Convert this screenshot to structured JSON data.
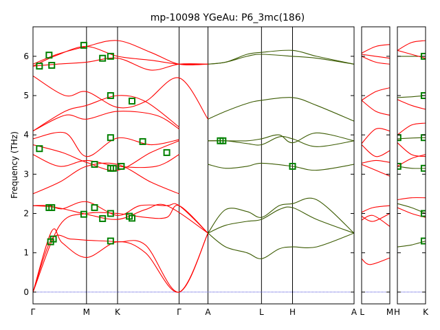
{
  "chart_data": {
    "type": "line",
    "title": "mp-10098   YGeAu: P6_3mc(186)",
    "ylabel": "Frequency (THz)",
    "ylim": [
      -0.3,
      6.75
    ],
    "yticks": [
      0,
      1,
      2,
      3,
      4,
      5,
      6
    ],
    "grid": false,
    "colors": {
      "band": "#ff0000",
      "highlight_band": "#3a5a00",
      "marker": "#008000",
      "zero_line": "#0000cc"
    },
    "panels": [
      {
        "xlabels": [
          "Γ",
          "M",
          "K",
          "Γ",
          "A",
          "L",
          "H",
          "A"
        ],
        "xticks": [
          0,
          1,
          1.58,
          2.73,
          3.27,
          4.27,
          4.85,
          6.0
        ],
        "xlim": [
          0,
          6.0
        ],
        "series": [
          {
            "kind": "red",
            "x": [
              0,
              0.35,
              0.7,
              1.0,
              1.58,
              2.1,
              2.73,
              3.27
            ],
            "y": [
              0,
              1.35,
              1.35,
              1.32,
              1.28,
              1.2,
              0,
              1.5
            ]
          },
          {
            "kind": "red",
            "x": [
              0,
              0.35,
              0.55,
              1.0,
              1.58,
              2.1,
              2.73,
              3.27
            ],
            "y": [
              0,
              1.55,
              1.25,
              0.88,
              1.28,
              1.0,
              0,
              1.5
            ]
          },
          {
            "kind": "red",
            "x": [
              0,
              0.5,
              1.0,
              1.58,
              2.1,
              2.5,
              2.73,
              3.27
            ],
            "y": [
              0,
              1.7,
              2.0,
              2.0,
              1.9,
              1.9,
              2.2,
              1.5
            ]
          },
          {
            "kind": "red",
            "x": [
              0,
              0.45,
              1.0,
              1.58,
              2.1,
              2.5,
              3.27
            ],
            "y": [
              2.2,
              2.15,
              1.98,
              1.85,
              2.1,
              2.2,
              1.5
            ]
          },
          {
            "kind": "red",
            "x": [
              0,
              0.3,
              0.55,
              1.0,
              1.58,
              2.0,
              2.5,
              2.73,
              3.27
            ],
            "y": [
              2.2,
              2.2,
              2.12,
              2.3,
              1.95,
              2.2,
              2.2,
              2.2,
              1.5
            ]
          },
          {
            "kind": "red",
            "x": [
              0,
              0.5,
              1.0,
              1.58,
              2.2,
              2.73
            ],
            "y": [
              2.5,
              2.8,
              3.2,
              3.25,
              2.8,
              2.5
            ]
          },
          {
            "kind": "red",
            "x": [
              0,
              0.5,
              1.0,
              1.58,
              2.3,
              2.73
            ],
            "y": [
              3.5,
              3.2,
              3.35,
              3.2,
              3.2,
              3.5
            ]
          },
          {
            "kind": "red",
            "x": [
              0,
              0.55,
              1.0,
              1.58,
              2.2,
              2.73
            ],
            "y": [
              3.75,
              3.55,
              3.3,
              3.1,
              3.55,
              3.85
            ]
          },
          {
            "kind": "red",
            "x": [
              0,
              0.6,
              1.0,
              1.58,
              2.2,
              2.73
            ],
            "y": [
              3.9,
              4.05,
              3.45,
              3.92,
              3.75,
              3.88
            ]
          },
          {
            "kind": "red",
            "x": [
              0,
              0.6,
              1.0,
              1.58,
              2.3,
              2.73
            ],
            "y": [
              4.1,
              4.5,
              4.4,
              4.6,
              4.5,
              4.15
            ]
          },
          {
            "kind": "red",
            "x": [
              0,
              0.6,
              1.0,
              1.58,
              2.1,
              2.73
            ],
            "y": [
              4.1,
              4.6,
              4.75,
              5.0,
              4.85,
              4.2
            ]
          },
          {
            "kind": "red",
            "x": [
              0,
              0.6,
              1.0,
              1.58,
              2.1,
              2.73,
              3.27
            ],
            "y": [
              5.5,
              5.0,
              5.1,
              4.7,
              4.85,
              5.45,
              4.4
            ]
          },
          {
            "kind": "red",
            "x": [
              0,
              0.45,
              1.0,
              1.58,
              2.2,
              2.73,
              3.27
            ],
            "y": [
              5.75,
              5.8,
              5.85,
              5.95,
              5.65,
              5.8,
              5.8
            ]
          },
          {
            "kind": "red",
            "x": [
              0,
              0.45,
              1.0,
              1.58,
              2.2,
              2.73,
              3.27
            ],
            "y": [
              5.75,
              6.03,
              6.25,
              6.0,
              5.9,
              5.8,
              5.8
            ]
          },
          {
            "kind": "red",
            "x": [
              0,
              0.45,
              1.0,
              1.58,
              2.2,
              2.73,
              3.27
            ],
            "y": [
              5.8,
              6.05,
              6.25,
              6.4,
              6.1,
              5.8,
              5.8
            ]
          },
          {
            "kind": "green",
            "x": [
              3.27,
              3.6,
              4.0,
              4.27,
              4.6,
              4.85,
              5.3,
              6.0
            ],
            "y": [
              1.5,
              1.15,
              1.0,
              0.85,
              1.1,
              1.15,
              1.15,
              1.5
            ]
          },
          {
            "kind": "green",
            "x": [
              3.27,
              3.6,
              4.0,
              4.27,
              4.6,
              4.85,
              5.3,
              6.0
            ],
            "y": [
              1.5,
              1.7,
              1.8,
              1.85,
              2.1,
              2.15,
              1.85,
              1.5
            ]
          },
          {
            "kind": "green",
            "x": [
              3.27,
              3.6,
              4.0,
              4.27,
              4.6,
              4.85,
              5.3,
              6.0
            ],
            "y": [
              1.5,
              2.1,
              2.05,
              1.9,
              2.2,
              2.25,
              2.35,
              1.5
            ]
          },
          {
            "kind": "green",
            "x": [
              3.27,
              3.6,
              4.0,
              4.27,
              4.85,
              5.3,
              6.0
            ],
            "y": [
              3.25,
              3.15,
              3.2,
              3.28,
              3.2,
              3.1,
              3.25
            ]
          },
          {
            "kind": "green",
            "x": [
              3.27,
              3.6,
              4.0,
              4.27,
              4.6,
              4.85,
              5.3,
              6.0
            ],
            "y": [
              3.85,
              3.85,
              3.78,
              3.75,
              3.95,
              3.9,
              3.7,
              3.85
            ]
          },
          {
            "kind": "green",
            "x": [
              3.27,
              3.6,
              4.0,
              4.27,
              4.6,
              4.85,
              5.3,
              6.0
            ],
            "y": [
              3.85,
              3.85,
              3.85,
              3.9,
              4.0,
              3.8,
              4.05,
              3.85
            ]
          },
          {
            "kind": "green",
            "x": [
              3.27,
              3.6,
              4.0,
              4.27,
              4.85,
              5.3,
              6.0
            ],
            "y": [
              4.4,
              4.6,
              4.8,
              4.88,
              4.95,
              4.75,
              4.35
            ]
          },
          {
            "kind": "green",
            "x": [
              3.27,
              3.6,
              4.0,
              4.27,
              4.85,
              5.3,
              6.0
            ],
            "y": [
              5.8,
              5.85,
              6.0,
              6.05,
              6.0,
              5.95,
              5.8
            ]
          },
          {
            "kind": "green",
            "x": [
              3.27,
              3.6,
              4.0,
              4.27,
              4.85,
              5.3,
              6.0
            ],
            "y": [
              5.8,
              5.85,
              6.05,
              6.1,
              6.15,
              6.0,
              5.8
            ]
          }
        ],
        "markers": [
          {
            "x": 0.12,
            "y": 5.75
          },
          {
            "x": 0.3,
            "y": 6.03
          },
          {
            "x": 0.35,
            "y": 5.77
          },
          {
            "x": 0.12,
            "y": 3.65
          },
          {
            "x": 0.3,
            "y": 2.15
          },
          {
            "x": 0.35,
            "y": 2.15
          },
          {
            "x": 0.33,
            "y": 1.28
          },
          {
            "x": 0.38,
            "y": 1.35
          },
          {
            "x": 0.95,
            "y": 6.28
          },
          {
            "x": 0.95,
            "y": 1.98
          },
          {
            "x": 1.15,
            "y": 3.25
          },
          {
            "x": 1.15,
            "y": 2.15
          },
          {
            "x": 1.3,
            "y": 1.87
          },
          {
            "x": 1.3,
            "y": 5.95
          },
          {
            "x": 1.45,
            "y": 6.0
          },
          {
            "x": 1.45,
            "y": 5.0
          },
          {
            "x": 1.45,
            "y": 3.93
          },
          {
            "x": 1.45,
            "y": 3.15
          },
          {
            "x": 1.5,
            "y": 3.15
          },
          {
            "x": 1.45,
            "y": 2.0
          },
          {
            "x": 1.45,
            "y": 1.3
          },
          {
            "x": 1.65,
            "y": 3.2
          },
          {
            "x": 1.8,
            "y": 1.93
          },
          {
            "x": 1.85,
            "y": 1.88
          },
          {
            "x": 1.85,
            "y": 4.86
          },
          {
            "x": 2.05,
            "y": 3.83
          },
          {
            "x": 2.5,
            "y": 3.55
          },
          {
            "x": 3.5,
            "y": 3.85
          },
          {
            "x": 3.55,
            "y": 3.85
          },
          {
            "x": 4.85,
            "y": 3.2
          }
        ]
      },
      {
        "xlabels": [
          "L",
          "M"
        ],
        "xticks": [
          0,
          1
        ],
        "xlim": [
          0,
          1
        ],
        "series": [
          {
            "kind": "red",
            "x": [
              0,
              0.3,
              1
            ],
            "y": [
              0.85,
              0.7,
              0.87
            ]
          },
          {
            "kind": "red",
            "x": [
              0,
              0.4,
              1
            ],
            "y": [
              1.83,
              1.95,
              1.67
            ]
          },
          {
            "kind": "red",
            "x": [
              0,
              0.4,
              1
            ],
            "y": [
              1.93,
              1.8,
              2.0
            ]
          },
          {
            "kind": "red",
            "x": [
              0,
              0.4,
              1
            ],
            "y": [
              2.03,
              2.15,
              2.2
            ]
          },
          {
            "kind": "red",
            "x": [
              0,
              0.5,
              1
            ],
            "y": [
              3.25,
              3.1,
              2.95
            ]
          },
          {
            "kind": "red",
            "x": [
              0,
              0.5,
              1
            ],
            "y": [
              3.28,
              3.35,
              3.3
            ]
          },
          {
            "kind": "red",
            "x": [
              0,
              0.5,
              1
            ],
            "y": [
              3.75,
              3.45,
              3.6
            ]
          },
          {
            "kind": "red",
            "x": [
              0,
              0.5,
              1
            ],
            "y": [
              3.78,
              4.15,
              4.1
            ]
          },
          {
            "kind": "red",
            "x": [
              0,
              0.5,
              1
            ],
            "y": [
              4.88,
              4.6,
              4.5
            ]
          },
          {
            "kind": "red",
            "x": [
              0,
              0.5,
              1
            ],
            "y": [
              4.88,
              5.1,
              5.2
            ]
          },
          {
            "kind": "red",
            "x": [
              0,
              0.5,
              1
            ],
            "y": [
              6.0,
              5.85,
              5.8
            ]
          },
          {
            "kind": "red",
            "x": [
              0,
              0.5,
              1
            ],
            "y": [
              6.05,
              6.0,
              5.95
            ]
          },
          {
            "kind": "red",
            "x": [
              0,
              0.5,
              1
            ],
            "y": [
              6.08,
              6.25,
              6.3
            ]
          }
        ],
        "markers": []
      },
      {
        "xlabels": [
          "H",
          "K"
        ],
        "xticks": [
          0,
          1
        ],
        "xlim": [
          0,
          1
        ],
        "series": [
          {
            "kind": "green",
            "x": [
              0,
              0.5,
              1
            ],
            "y": [
              1.15,
              1.2,
              1.3
            ]
          },
          {
            "kind": "red",
            "x": [
              0,
              0.5,
              1
            ],
            "y": [
              2.15,
              2.0,
              1.9
            ]
          },
          {
            "kind": "green",
            "x": [
              0,
              0.5,
              1
            ],
            "y": [
              2.25,
              2.15,
              2.0
            ]
          },
          {
            "kind": "red",
            "x": [
              0,
              0.5,
              1
            ],
            "y": [
              2.35,
              2.4,
              2.4
            ]
          },
          {
            "kind": "green",
            "x": [
              0,
              0.5,
              1
            ],
            "y": [
              3.2,
              3.15,
              3.15
            ]
          },
          {
            "kind": "red",
            "x": [
              0,
              0.5,
              1
            ],
            "y": [
              3.2,
              3.4,
              3.5
            ]
          },
          {
            "kind": "red",
            "x": [
              0,
              0.5,
              1
            ],
            "y": [
              3.8,
              3.5,
              3.45
            ]
          },
          {
            "kind": "green",
            "x": [
              0,
              0.5,
              1
            ],
            "y": [
              3.9,
              3.92,
              3.93
            ]
          },
          {
            "kind": "red",
            "x": [
              0,
              0.5,
              1
            ],
            "y": [
              4.0,
              4.25,
              4.3
            ]
          },
          {
            "kind": "red",
            "x": [
              0,
              0.5,
              1
            ],
            "y": [
              4.9,
              4.75,
              4.65
            ]
          },
          {
            "kind": "green",
            "x": [
              0,
              0.5,
              1
            ],
            "y": [
              4.95,
              4.97,
              5.0
            ]
          },
          {
            "kind": "green",
            "x": [
              0,
              0.5,
              1
            ],
            "y": [
              6.0,
              6.0,
              6.0
            ]
          },
          {
            "kind": "red",
            "x": [
              0,
              0.5,
              1
            ],
            "y": [
              6.15,
              6.05,
              5.95
            ]
          },
          {
            "kind": "red",
            "x": [
              0,
              0.5,
              1
            ],
            "y": [
              6.15,
              6.35,
              6.4
            ]
          }
        ],
        "markers": [
          {
            "x": 0.02,
            "y": 3.93
          },
          {
            "x": 0.02,
            "y": 3.2
          },
          {
            "x": 0.95,
            "y": 6.0
          },
          {
            "x": 0.95,
            "y": 5.0
          },
          {
            "x": 0.95,
            "y": 3.93
          },
          {
            "x": 0.95,
            "y": 3.15
          },
          {
            "x": 0.95,
            "y": 2.0
          },
          {
            "x": 0.95,
            "y": 1.3
          }
        ]
      }
    ]
  }
}
